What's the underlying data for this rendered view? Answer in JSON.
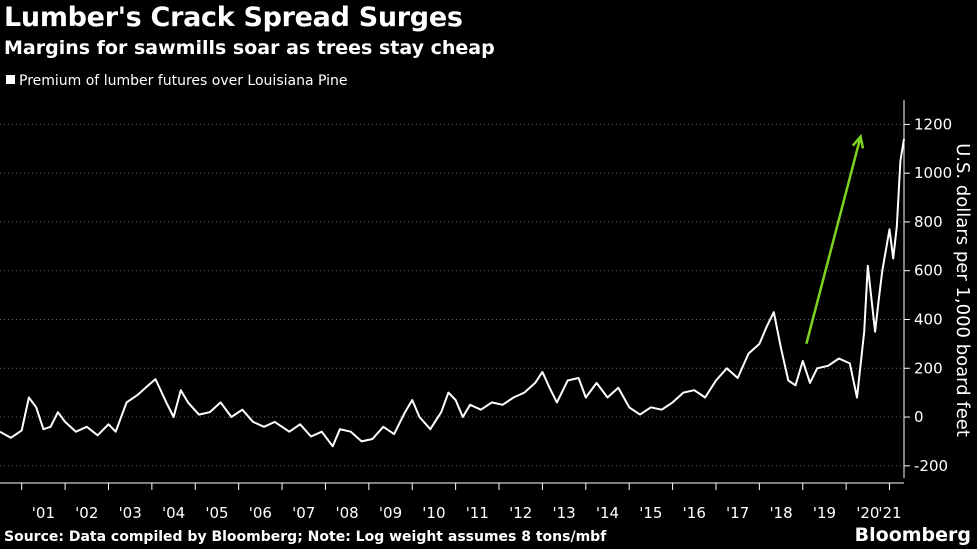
{
  "header": {
    "title": "Lumber's Crack Spread Surges",
    "subtitle": "Margins for sawmills soar as trees stay cheap"
  },
  "footer": {
    "source": "Source: Data compiled by Bloomberg; Note: Log weight assumes 8 tons/mbf",
    "brand": "Bloomberg"
  },
  "colors": {
    "background": "#000000",
    "line": "#ffffff",
    "annotation_arrow": "#7ed321",
    "grid": "#666666"
  },
  "chart_data": {
    "type": "line",
    "title": "Lumber's Crack Spread Surges",
    "subtitle": "Margins for sawmills soar as trees stay cheap",
    "xlabel": "",
    "ylabel": "U.S. dollars per 1,000 board feet",
    "ylim": [
      -250,
      1300
    ],
    "xlim": [
      "2000-07",
      "2021-05"
    ],
    "y_ticks": [
      -200,
      0,
      200,
      400,
      600,
      800,
      1000,
      1200
    ],
    "y_tick_labels": [
      "-200",
      "0",
      "200",
      "400",
      "600",
      "800",
      "1000",
      "1200"
    ],
    "y_axis_side": "right",
    "x_ticks": [
      "2001",
      "2002",
      "2003",
      "2004",
      "2005",
      "2006",
      "2007",
      "2008",
      "2009",
      "2010",
      "2011",
      "2012",
      "2013",
      "2014",
      "2015",
      "2016",
      "2017",
      "2018",
      "2019",
      "2020",
      "2021"
    ],
    "x_tick_labels": [
      "'01",
      "'02",
      "'03",
      "'04",
      "'05",
      "'06",
      "'07",
      "'08",
      "'09",
      "'10",
      "'11",
      "'12",
      "'13",
      "'14",
      "'15",
      "'16",
      "'17",
      "'18",
      "'19",
      "'20",
      "'21"
    ],
    "grid": "horizontal dotted",
    "legend": "top-left",
    "series": [
      {
        "name": "Premium of lumber futures over Louisiana Pine",
        "points": [
          [
            "2000-07",
            -60
          ],
          [
            "2000-10",
            -85
          ],
          [
            "2001-01",
            -55
          ],
          [
            "2001-03",
            80
          ],
          [
            "2001-05",
            40
          ],
          [
            "2001-07",
            -50
          ],
          [
            "2001-09",
            -40
          ],
          [
            "2001-11",
            20
          ],
          [
            "2002-01",
            -20
          ],
          [
            "2002-04",
            -60
          ],
          [
            "2002-07",
            -40
          ],
          [
            "2002-10",
            -75
          ],
          [
            "2003-01",
            -30
          ],
          [
            "2003-03",
            -60
          ],
          [
            "2003-06",
            60
          ],
          [
            "2003-09",
            90
          ],
          [
            "2003-12",
            130
          ],
          [
            "2004-02",
            155
          ],
          [
            "2004-05",
            60
          ],
          [
            "2004-07",
            0
          ],
          [
            "2004-09",
            110
          ],
          [
            "2004-11",
            60
          ],
          [
            "2005-02",
            10
          ],
          [
            "2005-05",
            20
          ],
          [
            "2005-08",
            60
          ],
          [
            "2005-11",
            0
          ],
          [
            "2006-02",
            30
          ],
          [
            "2006-05",
            -20
          ],
          [
            "2006-08",
            -40
          ],
          [
            "2006-11",
            -20
          ],
          [
            "2007-03",
            -60
          ],
          [
            "2007-06",
            -30
          ],
          [
            "2007-09",
            -80
          ],
          [
            "2007-12",
            -60
          ],
          [
            "2008-03",
            -120
          ],
          [
            "2008-05",
            -50
          ],
          [
            "2008-08",
            -60
          ],
          [
            "2008-11",
            -100
          ],
          [
            "2009-02",
            -90
          ],
          [
            "2009-05",
            -40
          ],
          [
            "2009-08",
            -70
          ],
          [
            "2009-11",
            20
          ],
          [
            "2010-01",
            70
          ],
          [
            "2010-03",
            0
          ],
          [
            "2010-06",
            -50
          ],
          [
            "2010-09",
            20
          ],
          [
            "2010-11",
            100
          ],
          [
            "2011-01",
            70
          ],
          [
            "2011-03",
            0
          ],
          [
            "2011-05",
            50
          ],
          [
            "2011-08",
            30
          ],
          [
            "2011-11",
            60
          ],
          [
            "2012-02",
            50
          ],
          [
            "2012-05",
            80
          ],
          [
            "2012-08",
            100
          ],
          [
            "2012-11",
            140
          ],
          [
            "2013-01",
            185
          ],
          [
            "2013-03",
            120
          ],
          [
            "2013-05",
            60
          ],
          [
            "2013-08",
            150
          ],
          [
            "2013-11",
            160
          ],
          [
            "2014-01",
            80
          ],
          [
            "2014-04",
            140
          ],
          [
            "2014-07",
            80
          ],
          [
            "2014-10",
            120
          ],
          [
            "2015-01",
            40
          ],
          [
            "2015-04",
            10
          ],
          [
            "2015-07",
            40
          ],
          [
            "2015-10",
            30
          ],
          [
            "2016-01",
            60
          ],
          [
            "2016-04",
            100
          ],
          [
            "2016-07",
            110
          ],
          [
            "2016-10",
            80
          ],
          [
            "2017-01",
            150
          ],
          [
            "2017-04",
            200
          ],
          [
            "2017-07",
            160
          ],
          [
            "2017-10",
            260
          ],
          [
            "2018-01",
            300
          ],
          [
            "2018-03",
            370
          ],
          [
            "2018-05",
            430
          ],
          [
            "2018-07",
            280
          ],
          [
            "2018-09",
            150
          ],
          [
            "2018-11",
            130
          ],
          [
            "2019-01",
            230
          ],
          [
            "2019-03",
            140
          ],
          [
            "2019-05",
            200
          ],
          [
            "2019-08",
            210
          ],
          [
            "2019-11",
            240
          ],
          [
            "2020-02",
            220
          ],
          [
            "2020-04",
            80
          ],
          [
            "2020-06",
            350
          ],
          [
            "2020-07",
            620
          ],
          [
            "2020-09",
            350
          ],
          [
            "2020-10",
            480
          ],
          [
            "2020-11",
            600
          ],
          [
            "2021-01",
            770
          ],
          [
            "2021-02",
            650
          ],
          [
            "2021-03",
            780
          ],
          [
            "2021-04",
            1050
          ],
          [
            "2021-05",
            1140
          ]
        ]
      }
    ],
    "annotations": [
      {
        "type": "arrow",
        "color": "#7ed321",
        "from": [
          "2019-02",
          300
        ],
        "to": [
          "2020-05",
          1150
        ]
      }
    ]
  }
}
